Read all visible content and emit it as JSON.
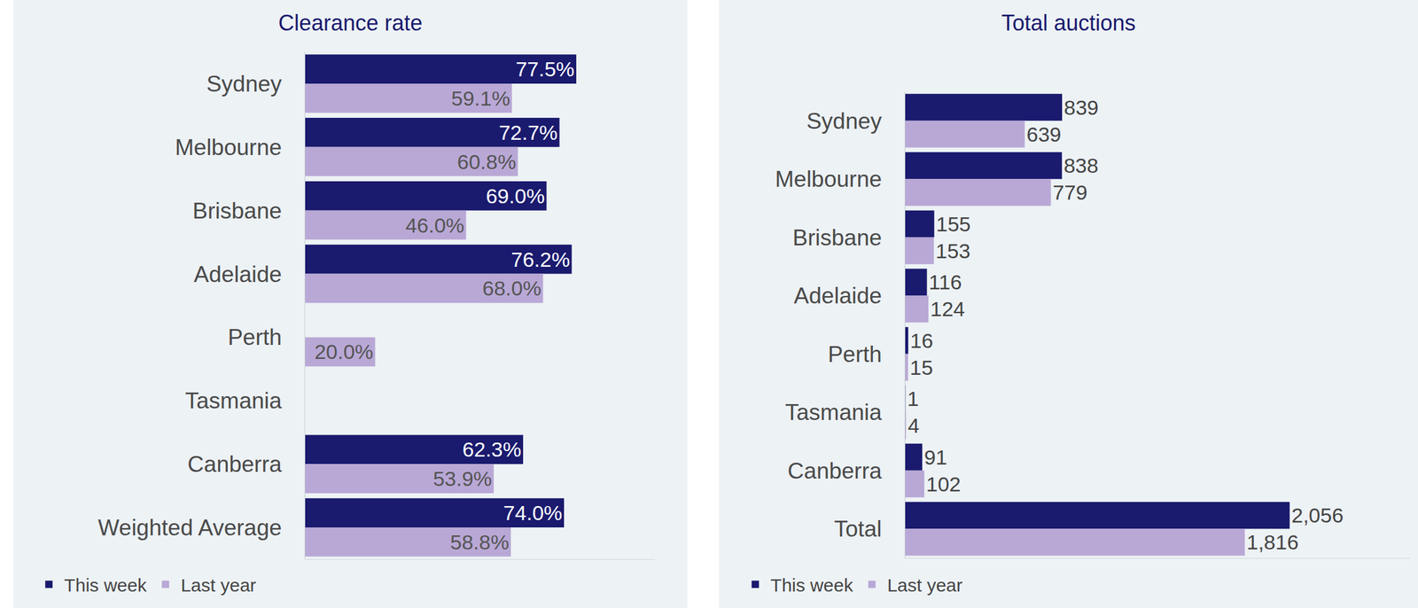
{
  "chart_data": [
    {
      "type": "bar",
      "title": "Clearance rate",
      "orientation": "horizontal",
      "data_labels": true,
      "tick_labels": "y",
      "legend": "bottom left",
      "categories": [
        "Sydney",
        "Melbourne",
        "Brisbane",
        "Adelaide",
        "Perth",
        "Tasmania",
        "Canberra",
        "Weighted Average"
      ],
      "xlim": [
        0,
        100
      ],
      "series": [
        {
          "name": "This week",
          "color": "#1a1a6e",
          "values": [
            77.5,
            72.7,
            69.0,
            76.2,
            null,
            null,
            62.3,
            74.0
          ],
          "value_labels": [
            "77.5%",
            "72.7%",
            "69.0%",
            "76.2%",
            null,
            null,
            "62.3%",
            "74.0%"
          ]
        },
        {
          "name": "Last year",
          "color": "#b9a8d6",
          "values": [
            59.1,
            60.8,
            46.0,
            68.0,
            20.0,
            null,
            53.9,
            58.8
          ],
          "value_labels": [
            "59.1%",
            "60.8%",
            "46.0%",
            "68.0%",
            "20.0%",
            null,
            "53.9%",
            "58.8%"
          ]
        }
      ]
    },
    {
      "type": "bar",
      "title": "Total auctions",
      "orientation": "horizontal",
      "data_labels": true,
      "tick_labels": "y",
      "legend": "bottom left",
      "categories": [
        "Sydney",
        "Melbourne",
        "Brisbane",
        "Adelaide",
        "Perth",
        "Tasmania",
        "Canberra",
        "Total"
      ],
      "xlim": [
        0,
        2700
      ],
      "series": [
        {
          "name": "This week",
          "color": "#1a1a6e",
          "values": [
            839,
            838,
            155,
            116,
            16,
            1,
            91,
            2056
          ],
          "value_labels": [
            "839",
            "838",
            "155",
            "116",
            "16",
            "1",
            "91",
            "2,056"
          ]
        },
        {
          "name": "Last year",
          "color": "#b9a8d6",
          "values": [
            639,
            779,
            153,
            124,
            15,
            4,
            102,
            1816
          ],
          "value_labels": [
            "639",
            "779",
            "153",
            "124",
            "15",
            "4",
            "102",
            "1,816"
          ]
        }
      ]
    }
  ]
}
